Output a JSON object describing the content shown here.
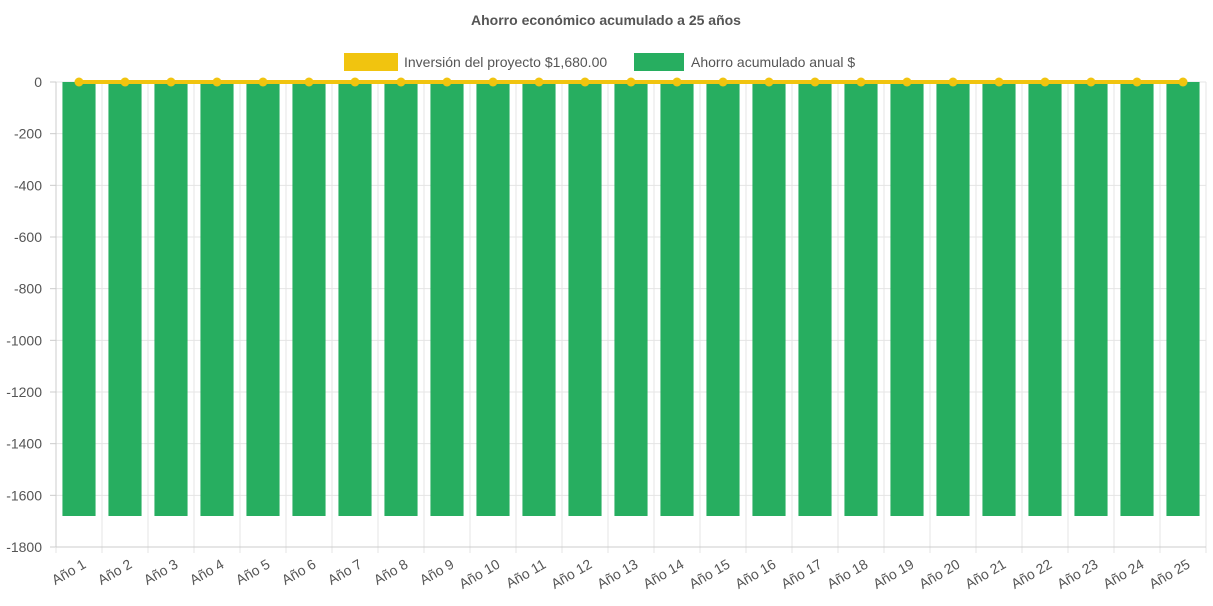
{
  "chart_data": {
    "type": "bar",
    "title": "Ahorro económico acumulado a 25 años",
    "categories": [
      "Año 1",
      "Año 2",
      "Año 3",
      "Año 4",
      "Año 5",
      "Año 6",
      "Año 7",
      "Año 8",
      "Año 9",
      "Año 10",
      "Año 11",
      "Año 12",
      "Año 13",
      "Año 14",
      "Año 15",
      "Año 16",
      "Año 17",
      "Año 18",
      "Año 19",
      "Año 20",
      "Año 21",
      "Año 22",
      "Año 23",
      "Año 24",
      "Año 25"
    ],
    "series": [
      {
        "name": "Inversión del proyecto $1,680.00",
        "type": "line",
        "color": "#f1c40f",
        "values": [
          0,
          0,
          0,
          0,
          0,
          0,
          0,
          0,
          0,
          0,
          0,
          0,
          0,
          0,
          0,
          0,
          0,
          0,
          0,
          0,
          0,
          0,
          0,
          0,
          0
        ]
      },
      {
        "name": "Ahorro acumulado anual $",
        "type": "bar",
        "color": "#27ae60",
        "values": [
          -1680,
          -1680,
          -1680,
          -1680,
          -1680,
          -1680,
          -1680,
          -1680,
          -1680,
          -1680,
          -1680,
          -1680,
          -1680,
          -1680,
          -1680,
          -1680,
          -1680,
          -1680,
          -1680,
          -1680,
          -1680,
          -1680,
          -1680,
          -1680,
          -1680
        ]
      }
    ],
    "yticks": [
      "0",
      "-200",
      "-400",
      "-600",
      "-800",
      "-1000",
      "-1200",
      "-1400",
      "-1600",
      "-1800"
    ],
    "ylim": [
      -1800,
      0
    ],
    "grid": true,
    "legend": "top"
  }
}
